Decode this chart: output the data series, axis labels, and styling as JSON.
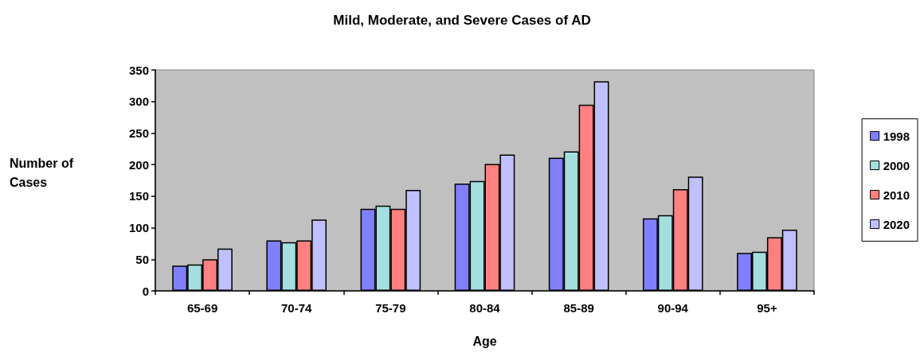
{
  "chart_data": {
    "type": "bar",
    "title": "Mild, Moderate, and Severe Cases of AD",
    "xlabel": "Age",
    "ylabel": "Number of\nCases",
    "categories": [
      "65-69",
      "70-74",
      "75-79",
      "80-84",
      "85-89",
      "90-94",
      "95+"
    ],
    "series": [
      {
        "name": "1998",
        "color": "#8080ff",
        "values": [
          40,
          80,
          130,
          170,
          211,
          115,
          60
        ]
      },
      {
        "name": "2000",
        "color": "#a4dfdf",
        "values": [
          42,
          77,
          135,
          174,
          221,
          120,
          62
        ]
      },
      {
        "name": "2010",
        "color": "#ff8080",
        "values": [
          50,
          80,
          130,
          201,
          295,
          161,
          85
        ]
      },
      {
        "name": "2020",
        "color": "#c0c0ff",
        "values": [
          67,
          113,
          160,
          216,
          332,
          181,
          97
        ]
      }
    ],
    "ylim": [
      0,
      350
    ],
    "yticks": [
      0,
      50,
      100,
      150,
      200,
      250,
      300,
      350
    ],
    "grid": false,
    "legend": "right"
  }
}
